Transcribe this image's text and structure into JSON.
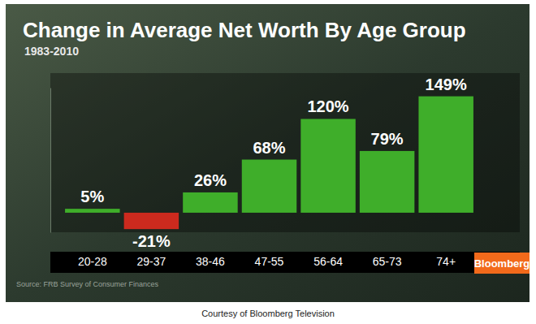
{
  "chart_data": {
    "type": "bar",
    "title": "Change in Average Net Worth By Age Group",
    "subtitle": "1983-2010",
    "categories": [
      "20-28",
      "29-37",
      "38-46",
      "47-55",
      "56-64",
      "65-73",
      "74+"
    ],
    "values": [
      5,
      -21,
      26,
      68,
      120,
      79,
      149
    ],
    "value_labels": [
      "5%",
      "-21%",
      "26%",
      "68%",
      "120%",
      "79%",
      "149%"
    ],
    "colors": [
      "#3fae2a",
      "#cc2a1e",
      "#3fae2a",
      "#3fae2a",
      "#3fae2a",
      "#3fae2a",
      "#3fae2a"
    ],
    "ylim": [
      -25,
      160
    ],
    "yticks": [],
    "data_labels": true,
    "tick_labels": "x",
    "annotations": [
      "Source: FRB Survey of Consumer Finances",
      "Bloomberg",
      "Courtesy of Bloomberg Television"
    ]
  }
}
